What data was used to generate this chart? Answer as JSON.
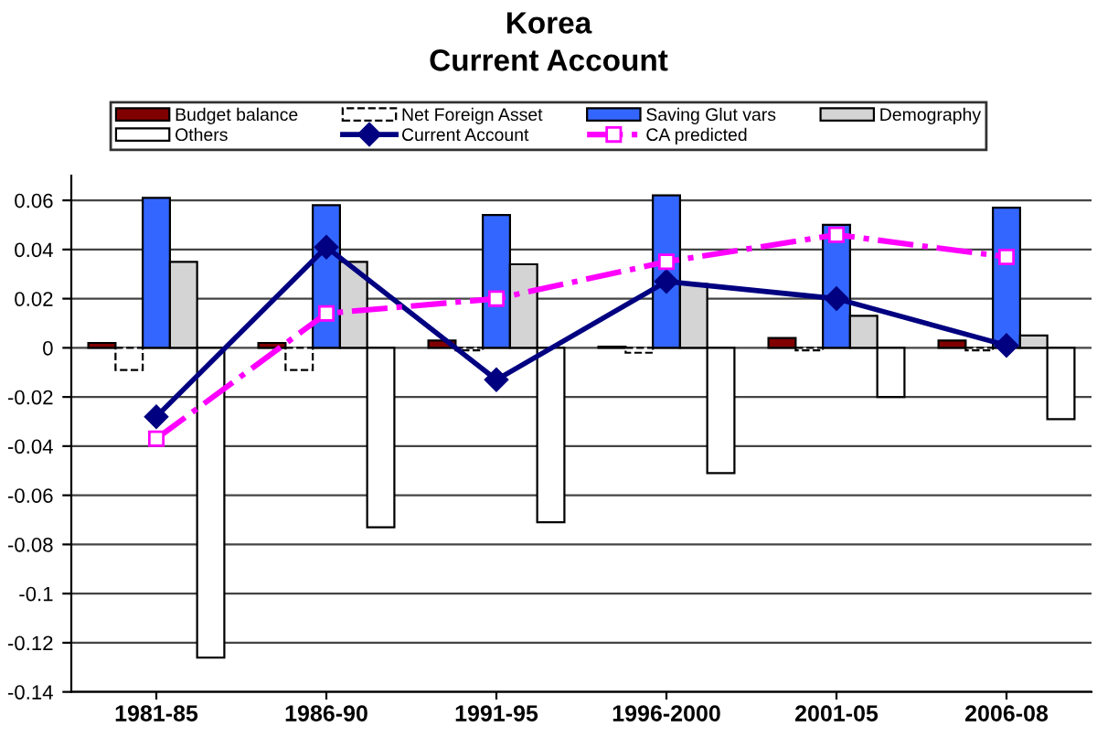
{
  "chart_data": {
    "type": "bar",
    "title": "Korea",
    "subtitle": "Current Account",
    "categories": [
      "1981-85",
      "1986-90",
      "1991-95",
      "1996-2000",
      "2001-05",
      "2006-08"
    ],
    "series": [
      {
        "name": "Budget balance",
        "color": "#800000",
        "values": [
          0.002,
          0.002,
          0.003,
          0.0005,
          0.004,
          0.003
        ]
      },
      {
        "name": "Net Foreign Asset",
        "color": "#ffffff",
        "line_style": "dashed",
        "values": [
          -0.009,
          -0.009,
          -0.001,
          -0.002,
          -0.001,
          -0.001
        ]
      },
      {
        "name": "Saving Glut vars",
        "color": "#3366ff",
        "values": [
          0.061,
          0.058,
          0.054,
          0.062,
          0.05,
          0.057
        ]
      },
      {
        "name": "Demography",
        "color": "#d4d4d4",
        "values": [
          0.035,
          0.035,
          0.034,
          0.026,
          0.013,
          0.005
        ]
      },
      {
        "name": "Others",
        "color": "#ffffff",
        "values": [
          -0.126,
          -0.073,
          -0.071,
          -0.051,
          -0.02,
          -0.029
        ]
      },
      {
        "name": "Current Account",
        "type": "line",
        "color": "#000080",
        "marker": "diamond",
        "line_style": "solid",
        "values": [
          -0.028,
          0.041,
          -0.013,
          0.027,
          0.02,
          0.001
        ]
      },
      {
        "name": "CA predicted",
        "type": "line",
        "color": "#ff00ff",
        "marker": "square",
        "line_style": "dashdot",
        "values": [
          -0.037,
          0.014,
          0.02,
          0.035,
          0.046,
          0.037
        ]
      }
    ],
    "ylim": [
      -0.14,
      0.07
    ],
    "yticks": [
      {
        "value": -0.14,
        "label": "-0.14"
      },
      {
        "value": -0.12,
        "label": "-0.12"
      },
      {
        "value": -0.1,
        "label": "-0.1"
      },
      {
        "value": -0.08,
        "label": "-0.08"
      },
      {
        "value": -0.06,
        "label": "-0.06"
      },
      {
        "value": -0.04,
        "label": "-0.04"
      },
      {
        "value": -0.02,
        "label": "-0.02"
      },
      {
        "value": 0,
        "label": "0"
      },
      {
        "value": 0.02,
        "label": "0.02"
      },
      {
        "value": 0.04,
        "label": "0.04"
      },
      {
        "value": 0.06,
        "label": "0.06"
      }
    ],
    "grid": "y",
    "legend": "top"
  }
}
